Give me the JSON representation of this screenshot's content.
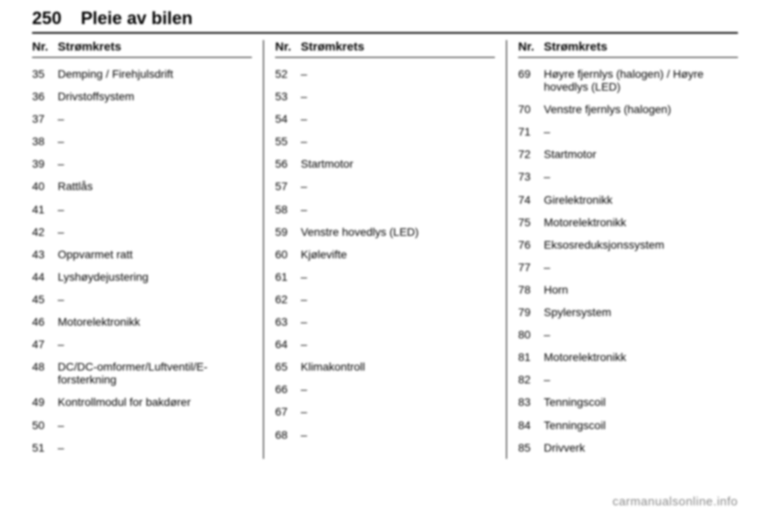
{
  "page_number": "250",
  "page_title": "Pleie av bilen",
  "column_header_nr": "Nr.",
  "column_header_desc": "Strømkrets",
  "footer": "carmanualsonline.info",
  "columns": [
    [
      {
        "nr": "35",
        "desc": "Demping / Firehjulsdrift"
      },
      {
        "nr": "36",
        "desc": "Drivstoffsystem"
      },
      {
        "nr": "37",
        "desc": "–"
      },
      {
        "nr": "38",
        "desc": "–"
      },
      {
        "nr": "39",
        "desc": "–"
      },
      {
        "nr": "40",
        "desc": "Rattlås"
      },
      {
        "nr": "41",
        "desc": "–"
      },
      {
        "nr": "42",
        "desc": "–"
      },
      {
        "nr": "43",
        "desc": "Oppvarmet ratt"
      },
      {
        "nr": "44",
        "desc": "Lyshøydejustering"
      },
      {
        "nr": "45",
        "desc": "–"
      },
      {
        "nr": "46",
        "desc": "Motorelektronikk"
      },
      {
        "nr": "47",
        "desc": "–"
      },
      {
        "nr": "48",
        "desc": "DC/DC-omformer/Luftventil/E-forsterkning"
      },
      {
        "nr": "49",
        "desc": "Kontrollmodul for bakdører"
      },
      {
        "nr": "50",
        "desc": "–"
      },
      {
        "nr": "51",
        "desc": "–"
      }
    ],
    [
      {
        "nr": "52",
        "desc": "–"
      },
      {
        "nr": "53",
        "desc": "–"
      },
      {
        "nr": "54",
        "desc": "–"
      },
      {
        "nr": "55",
        "desc": "–"
      },
      {
        "nr": "56",
        "desc": "Startmotor"
      },
      {
        "nr": "57",
        "desc": "–"
      },
      {
        "nr": "58",
        "desc": "–"
      },
      {
        "nr": "59",
        "desc": "Venstre hovedlys (LED)"
      },
      {
        "nr": "60",
        "desc": "Kjølevifte"
      },
      {
        "nr": "61",
        "desc": "–"
      },
      {
        "nr": "62",
        "desc": "–"
      },
      {
        "nr": "63",
        "desc": "–"
      },
      {
        "nr": "64",
        "desc": "–"
      },
      {
        "nr": "65",
        "desc": "Klimakontroll"
      },
      {
        "nr": "66",
        "desc": "–"
      },
      {
        "nr": "67",
        "desc": "–"
      },
      {
        "nr": "68",
        "desc": "–"
      }
    ],
    [
      {
        "nr": "69",
        "desc": "Høyre fjernlys (halogen) / Høyre hovedlys (LED)"
      },
      {
        "nr": "70",
        "desc": "Venstre fjernlys (halogen)"
      },
      {
        "nr": "71",
        "desc": "–"
      },
      {
        "nr": "72",
        "desc": "Startmotor"
      },
      {
        "nr": "73",
        "desc": "–"
      },
      {
        "nr": "74",
        "desc": "Girelektronikk"
      },
      {
        "nr": "75",
        "desc": "Motorelektronikk"
      },
      {
        "nr": "76",
        "desc": "Eksosreduksjonssystem"
      },
      {
        "nr": "77",
        "desc": "–"
      },
      {
        "nr": "78",
        "desc": "Horn"
      },
      {
        "nr": "79",
        "desc": "Spylersystem"
      },
      {
        "nr": "80",
        "desc": "–"
      },
      {
        "nr": "81",
        "desc": "Motorelektronikk"
      },
      {
        "nr": "82",
        "desc": "–"
      },
      {
        "nr": "83",
        "desc": "Tenningscoil"
      },
      {
        "nr": "84",
        "desc": "Tenningscoil"
      },
      {
        "nr": "85",
        "desc": "Drivverk"
      }
    ]
  ]
}
